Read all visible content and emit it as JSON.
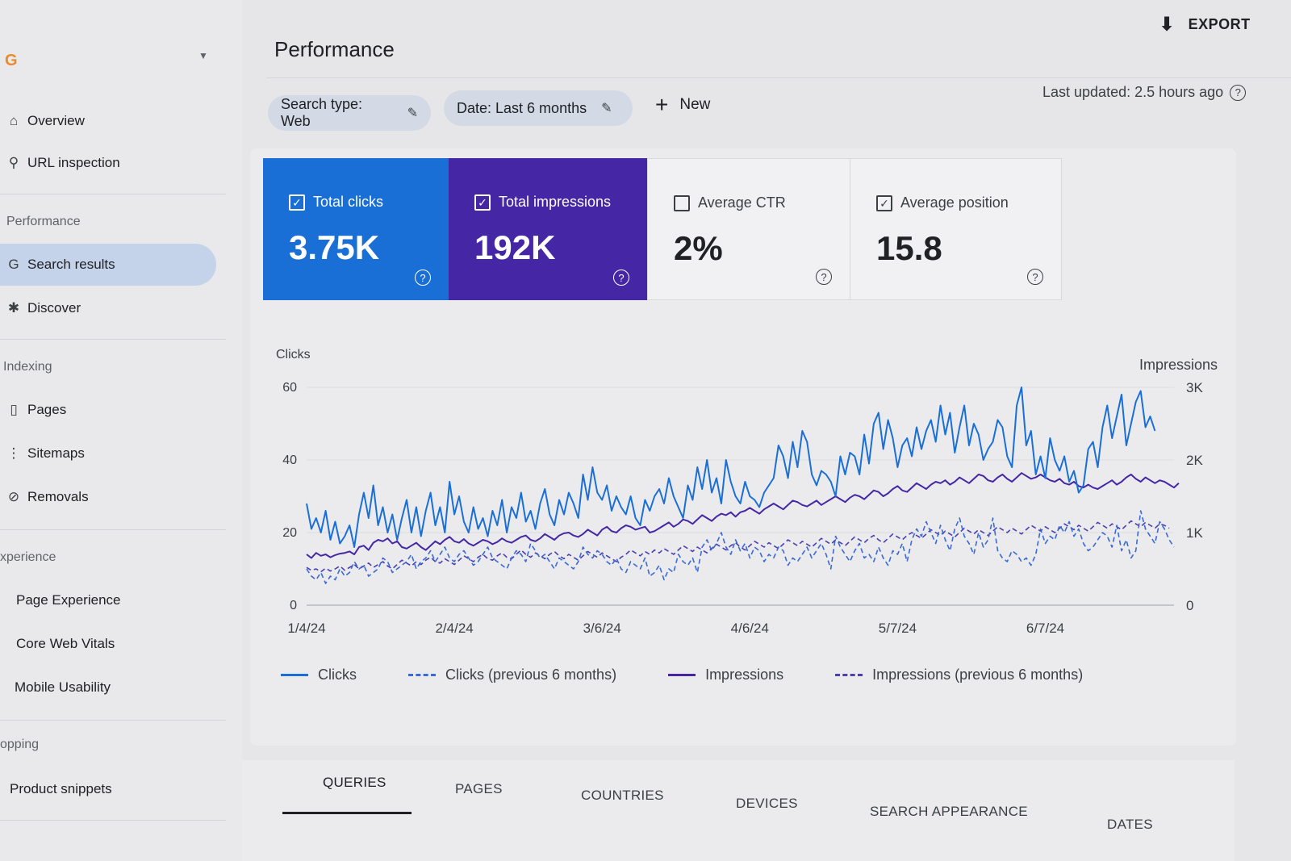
{
  "sidebar": {
    "logo": "G",
    "items": [
      {
        "key": "overview",
        "label": "Overview",
        "icon": "home-icon",
        "glyph": "⌂"
      },
      {
        "key": "url-inspection",
        "label": "URL inspection",
        "icon": "search-icon",
        "glyph": "⚲"
      }
    ],
    "sections": [
      {
        "title": "Performance",
        "items": [
          {
            "key": "search-results",
            "label": "Search results",
            "icon": "google-icon",
            "glyph": "G",
            "active": true
          },
          {
            "key": "discover",
            "label": "Discover",
            "icon": "asterisk-icon",
            "glyph": "✱"
          }
        ]
      },
      {
        "title": "Indexing",
        "items": [
          {
            "key": "pages",
            "label": "Pages",
            "icon": "document-icon",
            "glyph": "▯"
          },
          {
            "key": "sitemaps",
            "label": "Sitemaps",
            "icon": "sitemap-icon",
            "glyph": "⋮"
          },
          {
            "key": "removals",
            "label": "Removals",
            "icon": "removal-icon",
            "glyph": "⊘"
          }
        ]
      },
      {
        "title": "xperience",
        "items": [
          {
            "key": "page-experience",
            "label": "Page Experience"
          },
          {
            "key": "core-web-vitals",
            "label": "Core Web Vitals"
          },
          {
            "key": "mobile-usability",
            "label": "Mobile Usability"
          }
        ]
      },
      {
        "title": "opping",
        "items": [
          {
            "key": "product-snippets",
            "label": "Product snippets"
          }
        ]
      }
    ]
  },
  "header": {
    "title": "Performance",
    "export_label": "EXPORT",
    "last_updated": "Last updated: 2.5 hours ago"
  },
  "filters": {
    "search_type": "Search type: Web",
    "date": "Date: Last 6 months",
    "new_label": "New"
  },
  "metrics": [
    {
      "key": "total-clicks",
      "label": "Total clicks",
      "value": "3.75K",
      "checked": true,
      "color": "#1a6fd6"
    },
    {
      "key": "total-impressions",
      "label": "Total impressions",
      "value": "192K",
      "checked": true,
      "color": "#4527a6"
    },
    {
      "key": "average-ctr",
      "label": "Average CTR",
      "value": "2%",
      "checked": false
    },
    {
      "key": "average-position",
      "label": "Average position",
      "value": "15.8",
      "checked": true
    }
  ],
  "chart_data": {
    "type": "line",
    "left_axis_label": "Clicks",
    "right_axis_label": "Impressions",
    "left_ticks": [
      "60",
      "40",
      "20",
      "0"
    ],
    "right_ticks": [
      "3K",
      "2K",
      "1K",
      "0"
    ],
    "left_ylim": [
      0,
      60
    ],
    "right_ylim": [
      0,
      3000
    ],
    "x_ticks": [
      "1/4/24",
      "2/4/24",
      "3/6/24",
      "4/6/24",
      "5/7/24",
      "6/7/24"
    ],
    "x_tick_days": [
      0,
      31,
      62,
      93,
      124,
      155
    ],
    "num_days": 183,
    "grid": true,
    "legend_position": "bottom",
    "series": [
      {
        "name": "Clicks",
        "axis": "left",
        "color": "#1a6fd6",
        "dashed": false,
        "values": [
          28,
          21,
          24,
          20,
          26,
          18,
          23,
          17,
          19,
          22,
          16,
          25,
          31,
          24,
          33,
          22,
          27,
          20,
          25,
          18,
          24,
          29,
          20,
          27,
          19,
          26,
          31,
          22,
          27,
          20,
          34,
          25,
          30,
          23,
          20,
          27,
          21,
          24,
          19,
          26,
          22,
          29,
          20,
          27,
          24,
          31,
          23,
          26,
          21,
          28,
          32,
          25,
          22,
          29,
          25,
          31,
          28,
          24,
          36,
          29,
          38,
          31,
          29,
          33,
          26,
          30,
          27,
          25,
          30,
          24,
          22,
          29,
          26,
          30,
          32,
          28,
          35,
          30,
          27,
          24,
          33,
          29,
          38,
          32,
          40,
          31,
          35,
          28,
          40,
          34,
          30,
          28,
          34,
          30,
          29,
          27,
          31,
          33,
          35,
          44,
          41,
          35,
          45,
          38,
          48,
          45,
          36,
          33,
          37,
          36,
          34,
          30,
          41,
          36,
          42,
          41,
          36,
          47,
          39,
          50,
          53,
          43,
          51,
          46,
          38,
          44,
          46,
          41,
          49,
          43,
          48,
          51,
          45,
          55,
          47,
          53,
          42,
          49,
          55,
          44,
          50,
          47,
          40,
          43,
          45,
          51,
          49,
          41,
          38,
          55,
          60,
          44,
          48,
          36,
          41,
          35,
          46,
          40,
          37,
          41,
          34,
          37,
          31,
          33,
          43,
          45,
          38,
          49,
          55,
          46,
          52,
          58,
          44,
          50,
          56,
          59,
          49,
          52,
          48
        ]
      },
      {
        "name": "Clicks (previous 6 months)",
        "axis": "left",
        "color": "#3a6ad4",
        "dashed": true,
        "values": [
          10,
          8,
          7,
          9,
          6,
          8,
          7,
          10,
          8,
          9,
          12,
          10,
          11,
          8,
          9,
          10,
          13,
          12,
          9,
          10,
          11,
          12,
          14,
          10,
          12,
          13,
          15,
          12,
          14,
          16,
          13,
          12,
          14,
          15,
          13,
          11,
          12,
          14,
          16,
          13,
          12,
          11,
          10,
          13,
          15,
          14,
          12,
          17,
          15,
          13,
          14,
          12,
          10,
          13,
          12,
          11,
          10,
          12,
          16,
          14,
          13,
          15,
          14,
          12,
          11,
          13,
          10,
          9,
          12,
          11,
          10,
          13,
          8,
          9,
          11,
          7,
          10,
          9,
          14,
          12,
          11,
          13,
          9,
          16,
          18,
          15,
          17,
          20,
          16,
          14,
          18,
          15,
          17,
          13,
          16,
          15,
          12,
          14,
          13,
          16,
          15,
          11,
          13,
          12,
          14,
          16,
          13,
          15,
          17,
          14,
          10,
          19,
          16,
          14,
          12,
          15,
          17,
          13,
          14,
          12,
          16,
          13,
          11,
          15,
          14,
          17,
          12,
          18,
          21,
          19,
          23,
          20,
          17,
          22,
          18,
          15,
          21,
          24,
          19,
          17,
          14,
          20,
          16,
          18,
          24,
          15,
          13,
          12,
          15,
          14,
          12,
          13,
          11,
          14,
          21,
          17,
          19,
          18,
          22,
          20,
          23,
          19,
          21,
          17,
          15,
          16,
          18,
          20,
          19,
          16,
          22,
          15,
          18,
          13,
          15,
          26,
          21,
          19,
          17,
          23,
          21,
          18,
          16
        ]
      },
      {
        "name": "Impressions",
        "axis": "right",
        "color": "#4527a6",
        "dashed": false,
        "values": [
          700,
          650,
          720,
          680,
          700,
          660,
          690,
          710,
          720,
          740,
          700,
          800,
          820,
          760,
          860,
          900,
          880,
          920,
          850,
          880,
          800,
          780,
          820,
          860,
          800,
          760,
          820,
          880,
          840,
          900,
          940,
          880,
          860,
          910,
          850,
          820,
          860,
          900,
          880,
          840,
          870,
          920,
          880,
          860,
          900,
          940,
          960,
          900,
          880,
          920,
          980,
          940,
          900,
          960,
          990,
          1000,
          960,
          940,
          980,
          1040,
          1000,
          960,
          1040,
          1080,
          1020,
          1000,
          1060,
          1100,
          1080,
          1040,
          1060,
          1080,
          1000,
          1020,
          1060,
          1100,
          1140,
          1080,
          1120,
          1180,
          1160,
          1120,
          1180,
          1240,
          1200,
          1160,
          1220,
          1260,
          1240,
          1280,
          1220,
          1280,
          1300,
          1340,
          1300,
          1260,
          1320,
          1360,
          1400,
          1360,
          1320,
          1380,
          1440,
          1420,
          1380,
          1360,
          1400,
          1440,
          1380,
          1420,
          1460,
          1500,
          1460,
          1420,
          1480,
          1520,
          1500,
          1460,
          1520,
          1580,
          1560,
          1500,
          1540,
          1600,
          1640,
          1580,
          1560,
          1620,
          1680,
          1640,
          1600,
          1660,
          1700,
          1680,
          1720,
          1660,
          1700,
          1760,
          1720,
          1680,
          1740,
          1800,
          1780,
          1720,
          1700,
          1760,
          1800,
          1740,
          1700,
          1760,
          1820,
          1780,
          1740,
          1760,
          1800,
          1760,
          1720,
          1700,
          1740,
          1680,
          1660,
          1700,
          1640,
          1620,
          1660,
          1620,
          1600,
          1640,
          1680,
          1720,
          1660,
          1700,
          1760,
          1800,
          1740,
          1700,
          1760,
          1720,
          1680,
          1720,
          1700,
          1660,
          1620,
          1680
        ]
      },
      {
        "name": "Impressions (previous 6 months)",
        "axis": "right",
        "color": "#4a3fb0",
        "dashed": true,
        "values": [
          520,
          480,
          500,
          460,
          510,
          470,
          500,
          540,
          480,
          520,
          560,
          500,
          540,
          580,
          520,
          560,
          600,
          540,
          500,
          560,
          620,
          580,
          540,
          600,
          560,
          620,
          660,
          600,
          580,
          640,
          600,
          560,
          620,
          680,
          640,
          600,
          660,
          700,
          640,
          620,
          680,
          720,
          660,
          640,
          700,
          760,
          700,
          660,
          720,
          680,
          640,
          700,
          740,
          680,
          640,
          700,
          660,
          620,
          680,
          740,
          700,
          660,
          720,
          680,
          640,
          600,
          660,
          700,
          760,
          720,
          680,
          740,
          700,
          760,
          720,
          780,
          740,
          700,
          760,
          820,
          780,
          740,
          800,
          760,
          720,
          780,
          840,
          800,
          760,
          820,
          860,
          800,
          760,
          820,
          880,
          840,
          800,
          860,
          820,
          780,
          840,
          900,
          860,
          820,
          880,
          840,
          800,
          860,
          920,
          880,
          840,
          900,
          860,
          820,
          880,
          940,
          900,
          860,
          920,
          960,
          900,
          860,
          920,
          980,
          940,
          900,
          960,
          1000,
          960,
          920,
          980,
          1040,
          1000,
          960,
          1020,
          980,
          940,
          1000,
          1060,
          1020,
          980,
          1040,
          1000,
          960,
          1020,
          1080,
          1040,
          1000,
          1060,
          1020,
          980,
          1040,
          1100,
          1060,
          1020,
          1080,
          1040,
          1000,
          1060,
          1120,
          1080,
          1040,
          1100,
          1060,
          1020,
          1080,
          1140,
          1100,
          1060,
          1120,
          1080,
          1040,
          1100,
          1160,
          1120,
          1080,
          1140,
          1100,
          1060,
          1120,
          1100,
          1060
        ]
      }
    ]
  },
  "tabs": [
    {
      "key": "queries",
      "label": "QUERIES",
      "active": true
    },
    {
      "key": "pages",
      "label": "PAGES"
    },
    {
      "key": "countries",
      "label": "COUNTRIES"
    },
    {
      "key": "devices",
      "label": "DEVICES"
    },
    {
      "key": "search-appearance",
      "label": "SEARCH APPEARANCE"
    },
    {
      "key": "dates",
      "label": "DATES"
    }
  ]
}
